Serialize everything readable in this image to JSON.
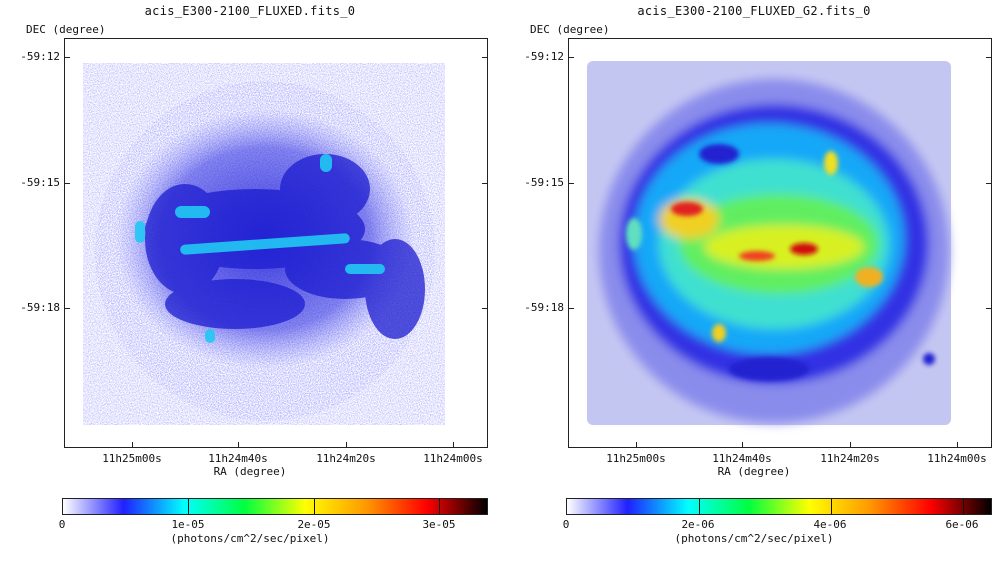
{
  "panels": [
    {
      "title": "acis_E300-2100_FLUXED.fits_0",
      "dec_label": "DEC (degree)",
      "ra_label": "RA (degree)",
      "y_ticks": [
        "-59:12",
        "-59:15",
        "-59:18"
      ],
      "x_ticks": [
        "11h25m00s",
        "11h24m40s",
        "11h24m20s",
        "11h24m00s"
      ],
      "colorbar": {
        "ticks": [
          "0",
          "1e-05",
          "2e-05",
          "3e-05"
        ],
        "unit": "(photons/cm^2/sec/pixel)",
        "colors": [
          "#ffffff",
          "#2020ff",
          "#00ffff",
          "#00ff40",
          "#ffff00",
          "#ff9900",
          "#ff0000",
          "#000000"
        ]
      },
      "image": {
        "style": "grainy",
        "description_icon": "supernova-remnant-image"
      }
    },
    {
      "title": "acis_E300-2100_FLUXED_G2.fits_0",
      "dec_label": "DEC (degree)",
      "ra_label": "RA (degree)",
      "y_ticks": [
        "-59:12",
        "-59:15",
        "-59:18"
      ],
      "x_ticks": [
        "11h25m00s",
        "11h24m40s",
        "11h24m20s",
        "11h24m00s"
      ],
      "colorbar": {
        "ticks": [
          "0",
          "2e-06",
          "4e-06",
          "6e-06"
        ],
        "unit": "(photons/cm^2/sec/pixel)",
        "colors": [
          "#ffffff",
          "#2020ff",
          "#00ffff",
          "#00ff40",
          "#ffff00",
          "#ff9900",
          "#ff0000",
          "#000000"
        ]
      },
      "image": {
        "style": "smooth",
        "description_icon": "supernova-remnant-image"
      }
    }
  ]
}
